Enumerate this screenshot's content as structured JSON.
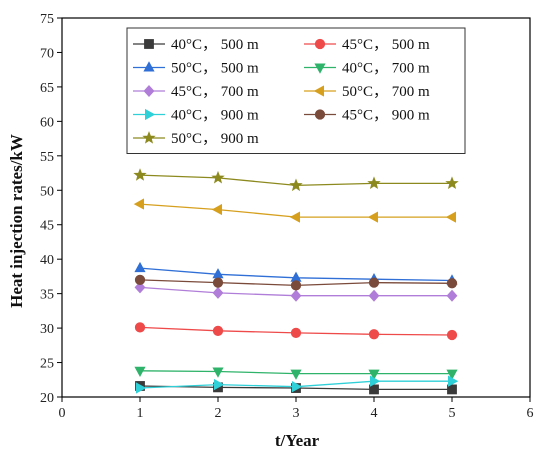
{
  "chart_data": {
    "type": "line",
    "xlabel": "t/Year",
    "ylabel": "Heat injection rates/kW",
    "xlim": [
      0,
      6
    ],
    "ylim": [
      20,
      75
    ],
    "xticks": [
      0,
      1,
      2,
      3,
      4,
      5,
      6
    ],
    "yticks": [
      20,
      25,
      30,
      35,
      40,
      45,
      50,
      55,
      60,
      65,
      70,
      75
    ],
    "x": [
      1,
      2,
      3,
      4,
      5
    ],
    "grid": false,
    "legend_position": "top-left",
    "series": [
      {
        "name": "40°C，  500 m",
        "marker": "square",
        "color": "#3a3a3a",
        "values": [
          21.6,
          21.4,
          21.3,
          21.1,
          21.1
        ]
      },
      {
        "name": "45°C，  500 m",
        "marker": "circle",
        "color": "#ef4a4a",
        "values": [
          30.1,
          29.6,
          29.3,
          29.1,
          29.0
        ]
      },
      {
        "name": "50°C，  500 m",
        "marker": "triangle-up",
        "color": "#2f6fd6",
        "values": [
          38.7,
          37.8,
          37.3,
          37.1,
          36.9
        ]
      },
      {
        "name": "40°C，  700 m",
        "marker": "triangle-down",
        "color": "#2fb36a",
        "values": [
          23.8,
          23.7,
          23.4,
          23.4,
          23.4
        ]
      },
      {
        "name": "45°C，  700 m",
        "marker": "diamond",
        "color": "#b07ed8",
        "values": [
          35.9,
          35.1,
          34.7,
          34.7,
          34.7
        ]
      },
      {
        "name": "50°C，  700 m",
        "marker": "triangle-left",
        "color": "#d6a01e",
        "values": [
          48.0,
          47.2,
          46.1,
          46.1,
          46.1
        ]
      },
      {
        "name": "40°C，  900 m",
        "marker": "triangle-right",
        "color": "#2fd0d8",
        "values": [
          21.3,
          21.8,
          21.5,
          22.3,
          22.3
        ]
      },
      {
        "name": "45°C，  900 m",
        "marker": "circle",
        "color": "#7a4a3a",
        "values": [
          37.0,
          36.6,
          36.2,
          36.6,
          36.5
        ]
      },
      {
        "name": "50°C，  900 m",
        "marker": "star",
        "color": "#8c8a1e",
        "values": [
          52.2,
          51.8,
          50.7,
          51.0,
          51.0
        ]
      }
    ]
  }
}
